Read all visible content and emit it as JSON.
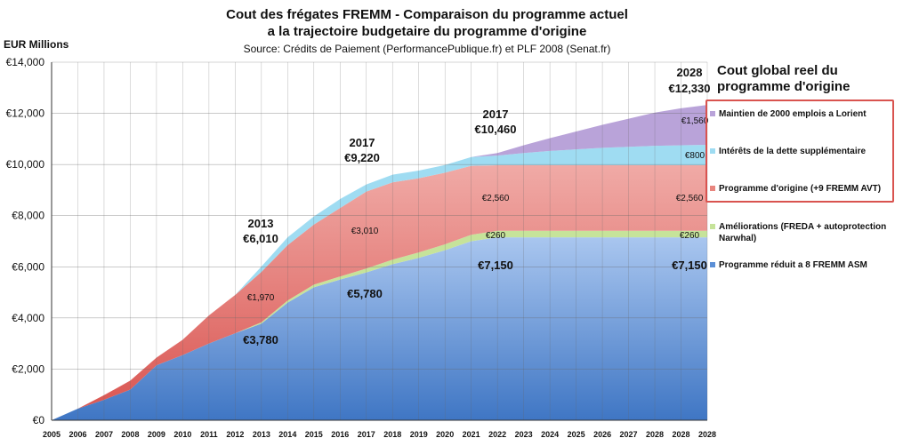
{
  "chart_data": {
    "type": "area",
    "title": "Cout des frégates FREMM - Comparaison du programme actuel",
    "title_line2": "a la trajectoire budgetaire du programme d'origine",
    "subtitle": "Source: Crédits de Paiement (PerformancePublique.fr) et PLF 2008 (Senat.fr)",
    "ylabel": "EUR Millions",
    "ylim": [
      0,
      14000
    ],
    "yticks": [
      "€0",
      "€2,000",
      "€4,000",
      "€6,000",
      "€8,000",
      "€10,000",
      "€12,000",
      "€14,000"
    ],
    "grid": true,
    "legend_title": "Cout global reel du programme d'origine",
    "legend_position": "right",
    "x": [
      "2005",
      "2006",
      "2007",
      "2008",
      "2009",
      "2010",
      "2011",
      "2012",
      "2013",
      "2014",
      "2015",
      "2016",
      "2017",
      "2018",
      "2019",
      "2020",
      "2021",
      "2022",
      "2023",
      "2024",
      "2025",
      "2026",
      "2027",
      "2028",
      "2028",
      "2028"
    ],
    "series": [
      {
        "name": "Programme réduit a 8 FREMM ASM",
        "color": "#5b8fd6",
        "values": [
          0,
          450,
          800,
          1200,
          2150,
          2550,
          3000,
          3400,
          3780,
          4600,
          5200,
          5500,
          5780,
          6100,
          6350,
          6650,
          7000,
          7150,
          7150,
          7150,
          7150,
          7150,
          7150,
          7150,
          7150,
          7150
        ]
      },
      {
        "name": "Améliorations (FREDA + autoprotection Narwhal)",
        "color": "#c6e39a",
        "values": [
          0,
          0,
          0,
          0,
          0,
          0,
          0,
          0,
          50,
          80,
          100,
          120,
          150,
          180,
          210,
          230,
          250,
          260,
          260,
          260,
          260,
          260,
          260,
          260,
          260,
          260
        ]
      },
      {
        "name": "Programme d'origine (+9 FREMM AVT)",
        "color": "#e8857e",
        "values": [
          0,
          0,
          180,
          350,
          300,
          600,
          1100,
          1500,
          1970,
          2170,
          2350,
          2680,
          3010,
          3020,
          2900,
          2800,
          2700,
          2560,
          2560,
          2560,
          2560,
          2560,
          2560,
          2560,
          2560,
          2560
        ]
      },
      {
        "name": "Intérêts de la dette supplémentaire",
        "color": "#9fdcf2",
        "values": [
          0,
          0,
          0,
          0,
          0,
          0,
          0,
          0,
          210,
          300,
          320,
          350,
          280,
          300,
          300,
          300,
          340,
          380,
          480,
          560,
          620,
          680,
          720,
          760,
          780,
          800
        ]
      },
      {
        "name": "Maintien de 2000 emplois a Lorient",
        "color": "#b9a3d9",
        "values": [
          0,
          0,
          0,
          0,
          0,
          0,
          0,
          0,
          0,
          0,
          0,
          0,
          0,
          0,
          0,
          0,
          0,
          100,
          300,
          500,
          700,
          900,
          1100,
          1300,
          1450,
          1560
        ]
      }
    ],
    "annotations": [
      {
        "text": "2013",
        "bold": true
      },
      {
        "text": "€6,010",
        "bold": true
      },
      {
        "text": "2017",
        "bold": true
      },
      {
        "text": "€9,220",
        "bold": true
      },
      {
        "text": "2017",
        "bold": true
      },
      {
        "text": "€10,460",
        "bold": true
      },
      {
        "text": "2028",
        "bold": true
      },
      {
        "text": "€12,330",
        "bold": true
      },
      {
        "text": "€3,780",
        "bold": true
      },
      {
        "text": "€5,780",
        "bold": true
      },
      {
        "text": "€7,150",
        "bold": true
      },
      {
        "text": "€7,150",
        "bold": true
      },
      {
        "text": "€1,970",
        "bold": false
      },
      {
        "text": "€3,010",
        "bold": false
      },
      {
        "text": "€2,560",
        "bold": false
      },
      {
        "text": "€2,560",
        "bold": false
      },
      {
        "text": "€260",
        "bold": false
      },
      {
        "text": "€260",
        "bold": false
      },
      {
        "text": "€800",
        "bold": false
      },
      {
        "text": "€1,560",
        "bold": false
      }
    ]
  }
}
